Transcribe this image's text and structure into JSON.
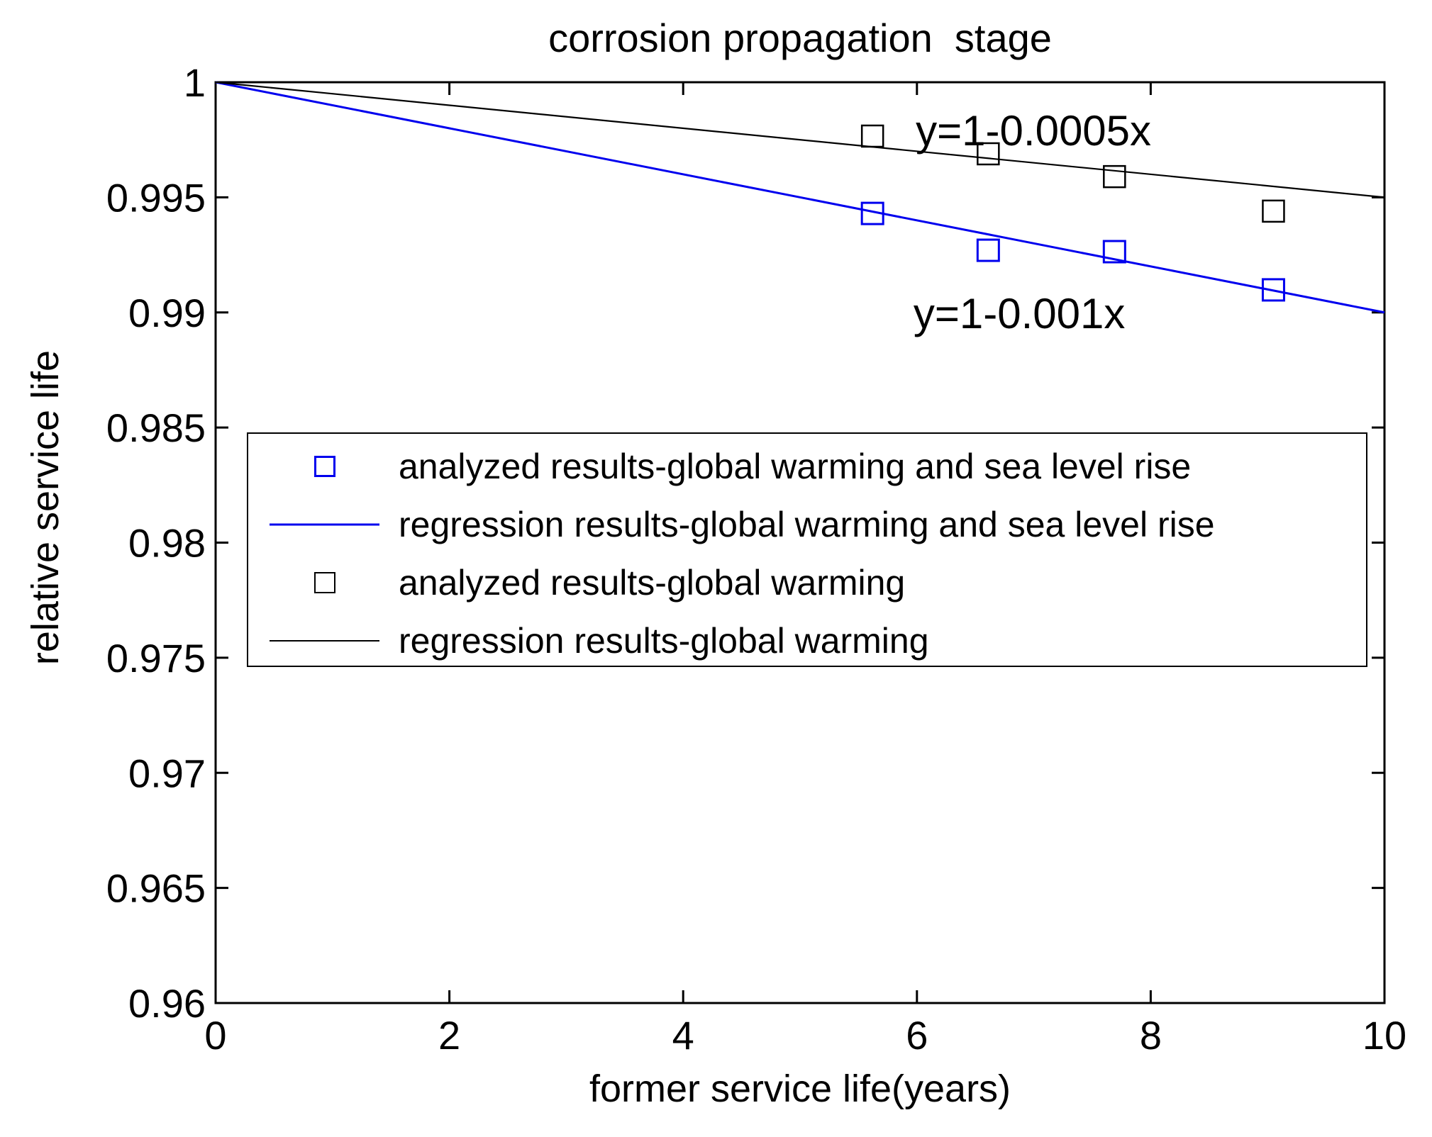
{
  "chart_data": {
    "type": "scatter",
    "title": "corrosion propagation  stage",
    "xlabel": "former service life(years)",
    "ylabel": "relative service life",
    "xlim": [
      0,
      10
    ],
    "ylim": [
      0.96,
      1
    ],
    "grid": false,
    "box": true,
    "xticks": [
      0,
      2,
      4,
      6,
      8,
      10
    ],
    "xtick_labels": [
      "0",
      "2",
      "4",
      "6",
      "8",
      "10"
    ],
    "yticks": [
      1,
      0.995,
      0.99,
      0.985,
      0.98,
      0.975,
      0.97,
      0.965,
      0.96
    ],
    "ytick_labels": [
      "1",
      "0.995",
      "0.99",
      "0.985",
      "0.98",
      "0.975",
      "0.97",
      "0.965",
      "0.96"
    ],
    "legend_position": "inside-middle-left",
    "series": [
      {
        "name": "analyzed results-global warming and sea level rise",
        "type": "scatter",
        "marker": "square",
        "color": "#0000EE",
        "points": [
          [
            5.62,
            0.9943
          ],
          [
            6.61,
            0.9927
          ],
          [
            7.69,
            0.99264
          ],
          [
            9.05,
            0.99098
          ]
        ]
      },
      {
        "name": "regression results-global warming and sea level rise",
        "type": "line",
        "color": "#0000EE",
        "equation": "y=1-0.001x",
        "x": [
          0,
          10
        ],
        "y": [
          1,
          0.99
        ]
      },
      {
        "name": "analyzed results-global warming",
        "type": "scatter",
        "marker": "square",
        "color": "#000000",
        "points": [
          [
            5.62,
            0.99766
          ],
          [
            6.61,
            0.99689
          ],
          [
            7.69,
            0.9959
          ],
          [
            9.05,
            0.9944
          ]
        ]
      },
      {
        "name": "regression results-global warming",
        "type": "line",
        "color": "#000000",
        "equation": "y=1-0.0005x",
        "x": [
          0,
          10
        ],
        "y": [
          1,
          0.995
        ]
      }
    ],
    "annotations": [
      {
        "text": "y=1-0.0005x",
        "x": 5.99,
        "y": 0.99788,
        "color": "#000000"
      },
      {
        "text": "y=1-0.001x",
        "x": 5.97,
        "y": 0.98993,
        "color": "#000000"
      }
    ]
  },
  "legend": {
    "entries": [
      {
        "label": "analyzed results-global warming and sea level rise",
        "marker": "square",
        "color": "#0000EE"
      },
      {
        "label": "regression results-global warming and sea level rise",
        "marker": "line",
        "color": "#0000EE"
      },
      {
        "label": "analyzed results-global warming",
        "marker": "square",
        "color": "#000000"
      },
      {
        "label": "regression results-global warming",
        "marker": "line",
        "color": "#000000"
      }
    ]
  }
}
